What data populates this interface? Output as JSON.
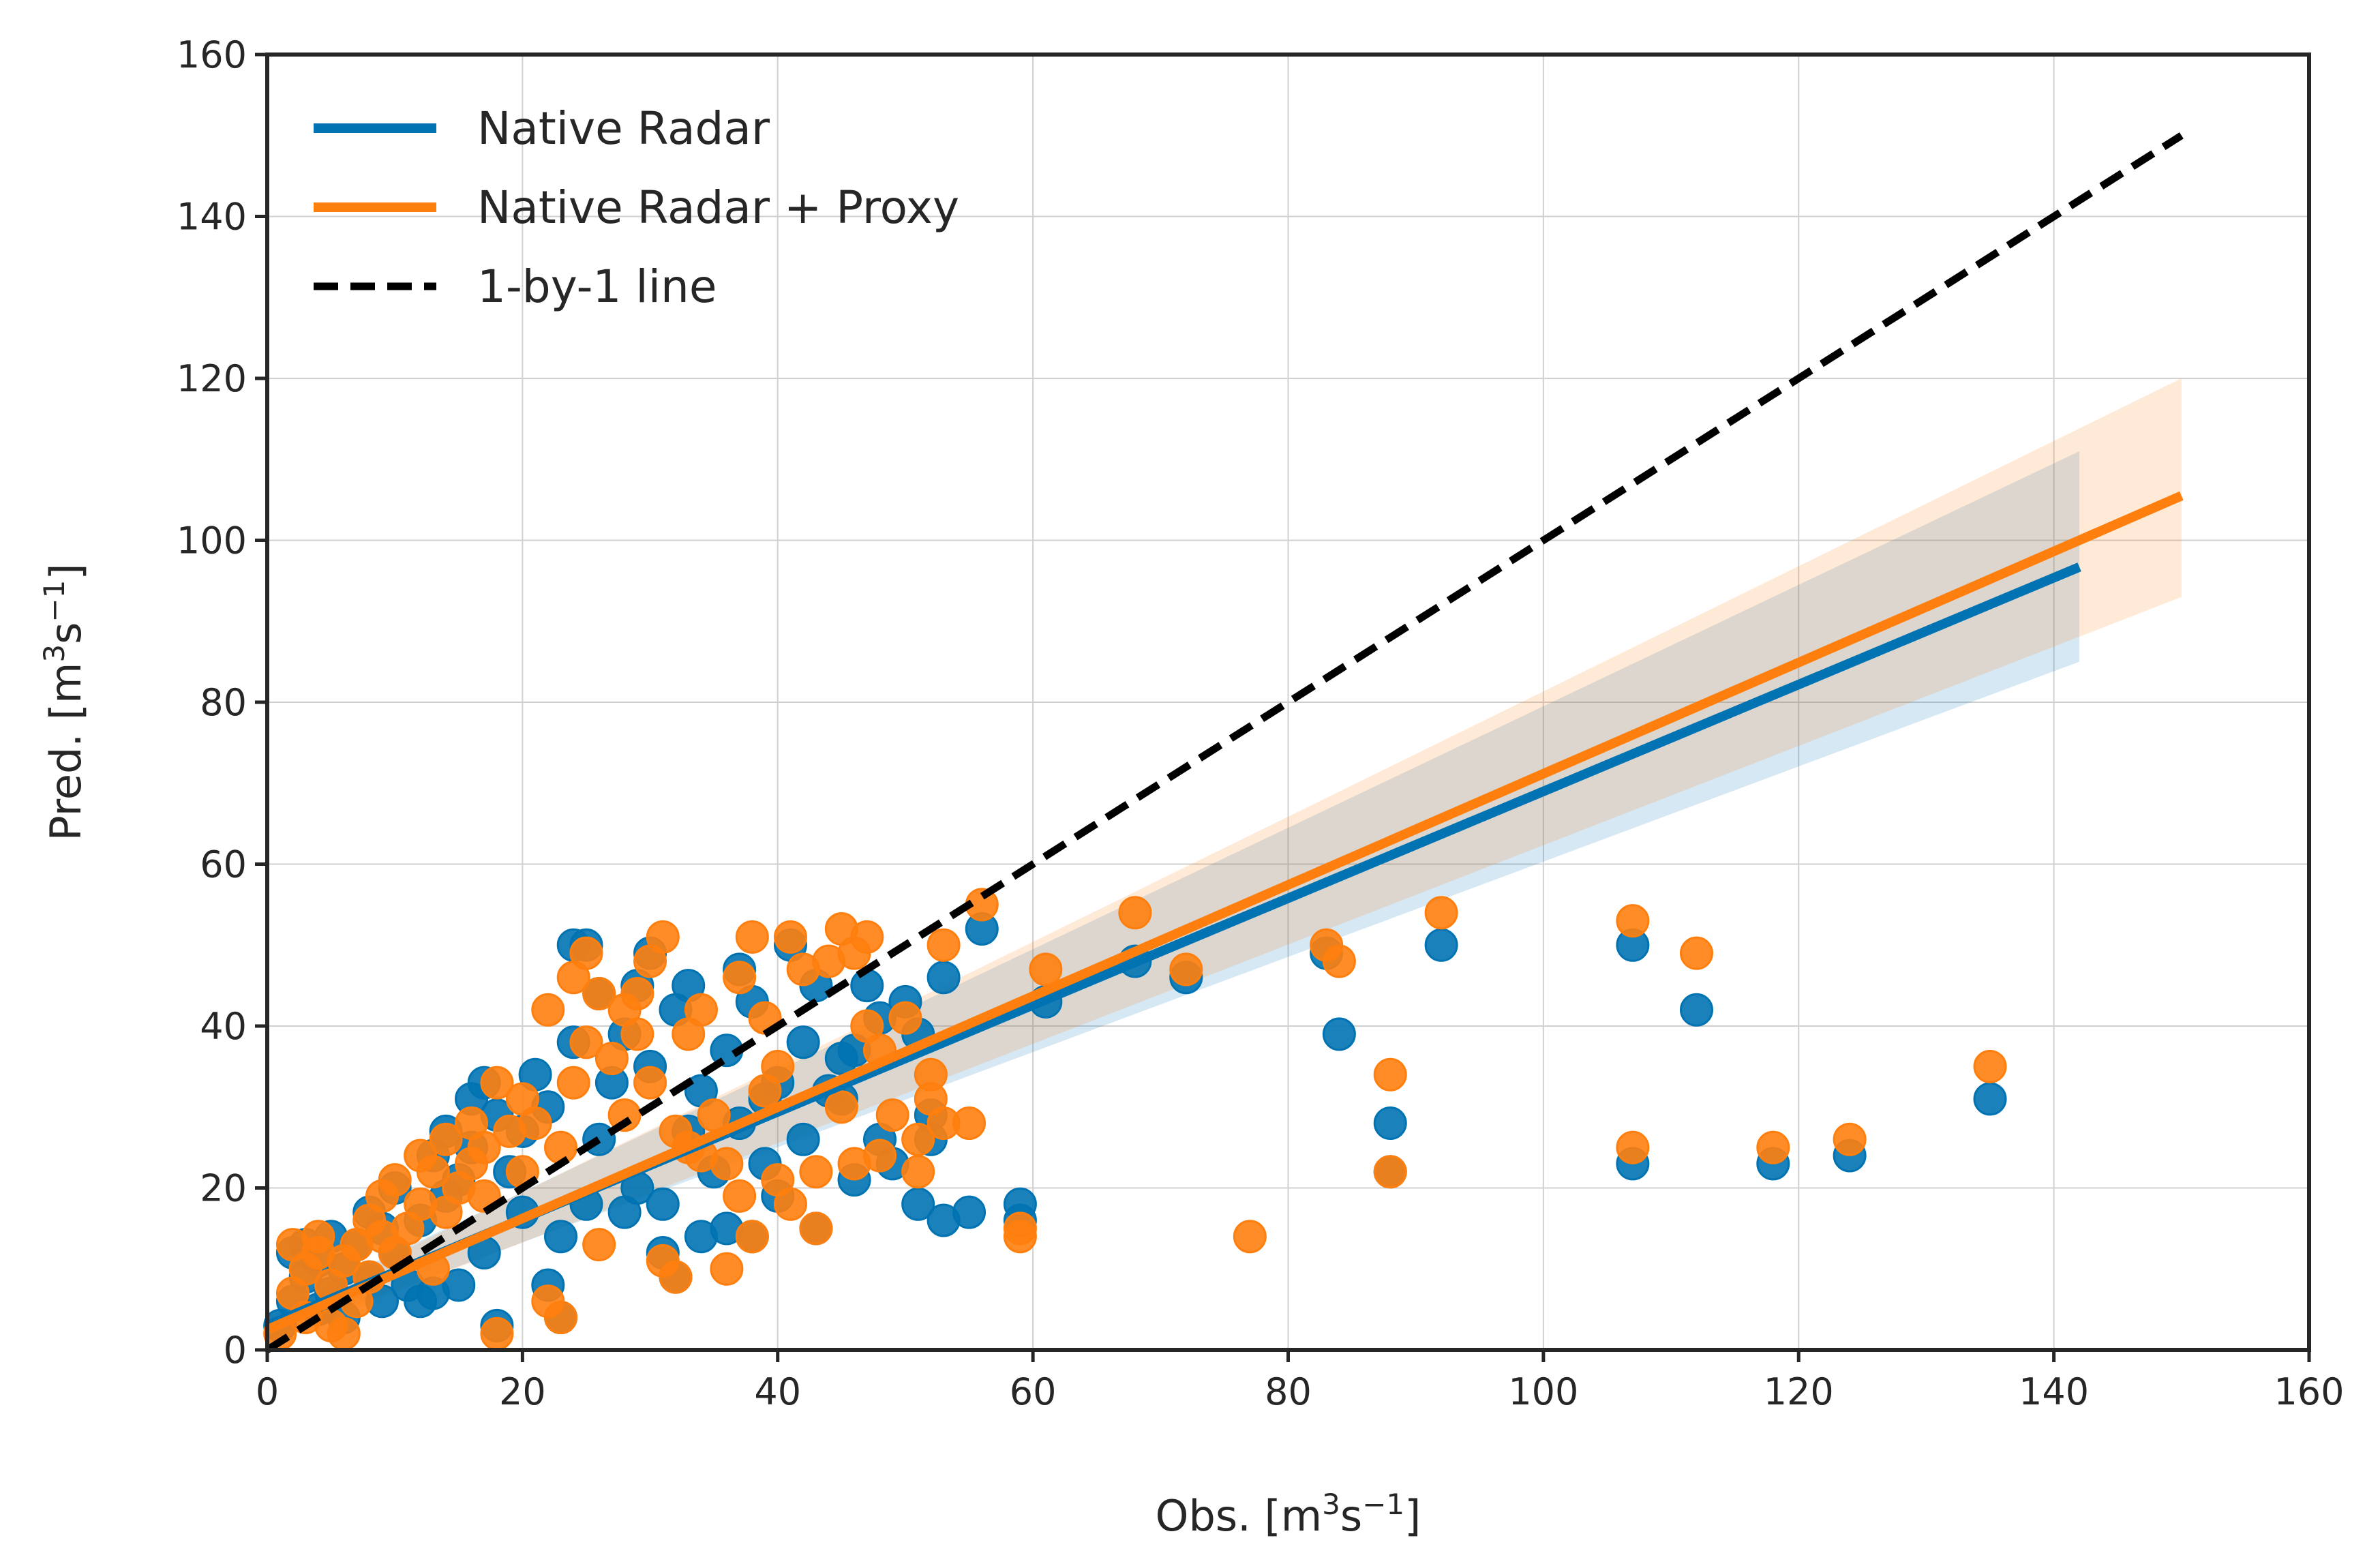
{
  "chart_data": {
    "type": "scatter",
    "title": "",
    "xlabel": {
      "prefix": "Obs. [m",
      "sup1": "3",
      "mid": "s",
      "sup2": "−1",
      "suffix": "]"
    },
    "ylabel": {
      "prefix": "Pred. [m",
      "sup1": "3",
      "mid": "s",
      "sup2": "−1",
      "suffix": "]"
    },
    "xlim": [
      0,
      160
    ],
    "ylim": [
      0,
      160
    ],
    "xticks": [
      0,
      20,
      40,
      60,
      80,
      100,
      120,
      140,
      160
    ],
    "yticks": [
      0,
      20,
      40,
      60,
      80,
      100,
      120,
      140,
      160
    ],
    "grid": true,
    "legend_position": "top-left",
    "colors": {
      "native": "#0173b2",
      "proxy": "#ff7f0e",
      "one_to_one": "#000000",
      "grid": "#d0d0d0",
      "frame": "#262626"
    },
    "series": [
      {
        "name": "Native Radar",
        "color": "#0173b2",
        "fit": {
          "x": [
            0,
            142
          ],
          "y": [
            3,
            96.7
          ]
        },
        "band": {
          "x": [
            0,
            142
          ],
          "lower_start": 1.5,
          "upper_start": 4.5,
          "lower_end": 85,
          "upper_end": 111
        },
        "points": [
          [
            1,
            3
          ],
          [
            2,
            6
          ],
          [
            2,
            12
          ],
          [
            3,
            9
          ],
          [
            3,
            13
          ],
          [
            4,
            5
          ],
          [
            4,
            11
          ],
          [
            5,
            7
          ],
          [
            5,
            14
          ],
          [
            6,
            4
          ],
          [
            6,
            10
          ],
          [
            7,
            13
          ],
          [
            8,
            9
          ],
          [
            8,
            17
          ],
          [
            9,
            6
          ],
          [
            9,
            15
          ],
          [
            10,
            12
          ],
          [
            10,
            20
          ],
          [
            11,
            8
          ],
          [
            12,
            16
          ],
          [
            12,
            6
          ],
          [
            13,
            24
          ],
          [
            13,
            7
          ],
          [
            14,
            19
          ],
          [
            14,
            27
          ],
          [
            15,
            21
          ],
          [
            15,
            8
          ],
          [
            16,
            31
          ],
          [
            16,
            25
          ],
          [
            17,
            33
          ],
          [
            17,
            12
          ],
          [
            18,
            3
          ],
          [
            18,
            29
          ],
          [
            19,
            22
          ],
          [
            20,
            17
          ],
          [
            20,
            27
          ],
          [
            21,
            34
          ],
          [
            22,
            8
          ],
          [
            22,
            30
          ],
          [
            23,
            14
          ],
          [
            23,
            4
          ],
          [
            24,
            38
          ],
          [
            24,
            50
          ],
          [
            25,
            50
          ],
          [
            25,
            18
          ],
          [
            26,
            26
          ],
          [
            26,
            44
          ],
          [
            27,
            33
          ],
          [
            28,
            39
          ],
          [
            28,
            17
          ],
          [
            29,
            45
          ],
          [
            29,
            20
          ],
          [
            30,
            49
          ],
          [
            30,
            35
          ],
          [
            31,
            18
          ],
          [
            31,
            12
          ],
          [
            32,
            9
          ],
          [
            32,
            42
          ],
          [
            33,
            27
          ],
          [
            33,
            45
          ],
          [
            34,
            14
          ],
          [
            34,
            32
          ],
          [
            35,
            22
          ],
          [
            36,
            37
          ],
          [
            36,
            15
          ],
          [
            37,
            28
          ],
          [
            37,
            47
          ],
          [
            38,
            14
          ],
          [
            38,
            43
          ],
          [
            39,
            31
          ],
          [
            39,
            23
          ],
          [
            40,
            19
          ],
          [
            40,
            33
          ],
          [
            41,
            50
          ],
          [
            42,
            26
          ],
          [
            42,
            38
          ],
          [
            43,
            15
          ],
          [
            43,
            45
          ],
          [
            44,
            32
          ],
          [
            45,
            31
          ],
          [
            45,
            36
          ],
          [
            46,
            21
          ],
          [
            46,
            37
          ],
          [
            47,
            45
          ],
          [
            48,
            41
          ],
          [
            48,
            26
          ],
          [
            49,
            23
          ],
          [
            50,
            43
          ],
          [
            51,
            18
          ],
          [
            51,
            39
          ],
          [
            52,
            26
          ],
          [
            52,
            29
          ],
          [
            53,
            16
          ],
          [
            53,
            46
          ],
          [
            55,
            17
          ],
          [
            56,
            52
          ],
          [
            59,
            18
          ],
          [
            59,
            16
          ],
          [
            61,
            43
          ],
          [
            68,
            48
          ],
          [
            72,
            46
          ],
          [
            83,
            49
          ],
          [
            84,
            39
          ],
          [
            88,
            22
          ],
          [
            88,
            28
          ],
          [
            92,
            50
          ],
          [
            107,
            23
          ],
          [
            107,
            50
          ],
          [
            112,
            42
          ],
          [
            118,
            23
          ],
          [
            124,
            24
          ],
          [
            135,
            31
          ]
        ]
      },
      {
        "name": "Native Radar + Proxy",
        "color": "#ff7f0e",
        "fit": {
          "x": [
            0,
            150
          ],
          "y": [
            2.5,
            105.5
          ]
        },
        "band": {
          "x": [
            0,
            150
          ],
          "lower_start": 1,
          "upper_start": 4,
          "lower_end": 93,
          "upper_end": 120
        },
        "points": [
          [
            1,
            2
          ],
          [
            2,
            7
          ],
          [
            2,
            13
          ],
          [
            3,
            10
          ],
          [
            3,
            4
          ],
          [
            4,
            12
          ],
          [
            4,
            14
          ],
          [
            5,
            8
          ],
          [
            5,
            3
          ],
          [
            6,
            11
          ],
          [
            6,
            2
          ],
          [
            7,
            6
          ],
          [
            7,
            13
          ],
          [
            8,
            16
          ],
          [
            8,
            9
          ],
          [
            9,
            14
          ],
          [
            9,
            19
          ],
          [
            10,
            12
          ],
          [
            10,
            21
          ],
          [
            11,
            15
          ],
          [
            12,
            18
          ],
          [
            12,
            24
          ],
          [
            13,
            10
          ],
          [
            13,
            22
          ],
          [
            14,
            26
          ],
          [
            14,
            17
          ],
          [
            15,
            20
          ],
          [
            16,
            23
          ],
          [
            16,
            28
          ],
          [
            17,
            25
          ],
          [
            17,
            19
          ],
          [
            18,
            2
          ],
          [
            18,
            33
          ],
          [
            19,
            27
          ],
          [
            20,
            22
          ],
          [
            20,
            31
          ],
          [
            21,
            28
          ],
          [
            22,
            42
          ],
          [
            22,
            6
          ],
          [
            23,
            4
          ],
          [
            23,
            25
          ],
          [
            24,
            46
          ],
          [
            24,
            33
          ],
          [
            25,
            49
          ],
          [
            25,
            38
          ],
          [
            26,
            13
          ],
          [
            26,
            44
          ],
          [
            27,
            36
          ],
          [
            28,
            42
          ],
          [
            28,
            29
          ],
          [
            29,
            39
          ],
          [
            29,
            44
          ],
          [
            30,
            33
          ],
          [
            30,
            48
          ],
          [
            31,
            51
          ],
          [
            31,
            11
          ],
          [
            32,
            9
          ],
          [
            32,
            27
          ],
          [
            33,
            25
          ],
          [
            33,
            39
          ],
          [
            34,
            24
          ],
          [
            34,
            42
          ],
          [
            35,
            29
          ],
          [
            36,
            10
          ],
          [
            36,
            23
          ],
          [
            37,
            46
          ],
          [
            37,
            19
          ],
          [
            38,
            14
          ],
          [
            38,
            51
          ],
          [
            39,
            32
          ],
          [
            39,
            41
          ],
          [
            40,
            35
          ],
          [
            40,
            21
          ],
          [
            41,
            18
          ],
          [
            41,
            51
          ],
          [
            42,
            47
          ],
          [
            43,
            15
          ],
          [
            43,
            22
          ],
          [
            44,
            48
          ],
          [
            45,
            30
          ],
          [
            45,
            52
          ],
          [
            46,
            23
          ],
          [
            46,
            49
          ],
          [
            47,
            40
          ],
          [
            47,
            51
          ],
          [
            48,
            37
          ],
          [
            48,
            24
          ],
          [
            49,
            29
          ],
          [
            50,
            41
          ],
          [
            51,
            26
          ],
          [
            51,
            22
          ],
          [
            52,
            34
          ],
          [
            52,
            31
          ],
          [
            53,
            28
          ],
          [
            53,
            50
          ],
          [
            55,
            28
          ],
          [
            56,
            55
          ],
          [
            59,
            15
          ],
          [
            59,
            14
          ],
          [
            61,
            47
          ],
          [
            68,
            54
          ],
          [
            72,
            47
          ],
          [
            77,
            14
          ],
          [
            83,
            50
          ],
          [
            84,
            48
          ],
          [
            88,
            22
          ],
          [
            88,
            34
          ],
          [
            92,
            54
          ],
          [
            107,
            25
          ],
          [
            107,
            53
          ],
          [
            112,
            49
          ],
          [
            118,
            25
          ],
          [
            124,
            26
          ],
          [
            135,
            35
          ]
        ]
      },
      {
        "name": "1-by-1 line",
        "color": "#000000",
        "style": "dashed",
        "x": [
          0,
          150
        ],
        "y": [
          0,
          150
        ]
      }
    ]
  }
}
